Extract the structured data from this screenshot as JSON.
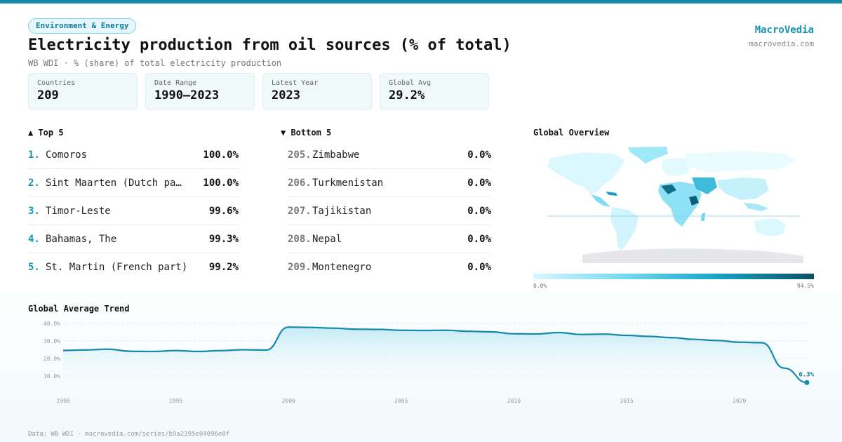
{
  "header": {
    "tag": "Environment & Energy",
    "title": "Electricity production from oil sources (% of total)",
    "subtitle": "WB WDI · % (share) of total electricity production",
    "brand": "MacroVedia",
    "brand_url": "macrovedia.com"
  },
  "stats": [
    {
      "label": "Countries",
      "value": "209"
    },
    {
      "label": "Date Range",
      "value": "1990–2023"
    },
    {
      "label": "Latest Year",
      "value": "2023"
    },
    {
      "label": "Global Avg",
      "value": "29.2%"
    }
  ],
  "top": {
    "title": "▲ Top 5",
    "items": [
      {
        "rank": "1.",
        "name": "Comoros",
        "value": "100.0%"
      },
      {
        "rank": "2.",
        "name": "Sint Maarten (Dutch pa…",
        "value": "100.0%"
      },
      {
        "rank": "3.",
        "name": "Timor-Leste",
        "value": "99.6%"
      },
      {
        "rank": "4.",
        "name": "Bahamas, The",
        "value": "99.3%"
      },
      {
        "rank": "5.",
        "name": "St. Martin (French part)",
        "value": "99.2%"
      }
    ]
  },
  "bottom": {
    "title": "▼ Bottom 5",
    "items": [
      {
        "rank": "205.",
        "name": "Zimbabwe",
        "value": "0.0%"
      },
      {
        "rank": "206.",
        "name": "Turkmenistan",
        "value": "0.0%"
      },
      {
        "rank": "207.",
        "name": "Tajikistan",
        "value": "0.0%"
      },
      {
        "rank": "208.",
        "name": "Nepal",
        "value": "0.0%"
      },
      {
        "rank": "209.",
        "name": "Montenegro",
        "value": "0.0%"
      }
    ]
  },
  "map": {
    "title": "Global Overview",
    "legend_min": "0.0%",
    "legend_max": "94.5%"
  },
  "chart_data": {
    "type": "area",
    "title": "Global Average Trend",
    "x": [
      1990,
      1991,
      1992,
      1993,
      1994,
      1995,
      1996,
      1997,
      1998,
      1999,
      2000,
      2001,
      2002,
      2003,
      2004,
      2005,
      2006,
      2007,
      2008,
      2009,
      2010,
      2011,
      2012,
      2013,
      2014,
      2015,
      2016,
      2017,
      2018,
      2019,
      2020,
      2021,
      2022,
      2023
    ],
    "values": [
      24.6,
      24.9,
      25.3,
      24.1,
      24.0,
      24.5,
      24.0,
      24.5,
      25.0,
      24.8,
      37.9,
      37.7,
      37.3,
      36.7,
      36.6,
      36.1,
      36.0,
      36.1,
      35.5,
      35.2,
      34.1,
      34.0,
      34.8,
      33.7,
      33.9,
      33.2,
      32.6,
      31.9,
      30.9,
      30.3,
      29.3,
      29.0,
      14.5,
      6.3
    ],
    "ylim": [
      0,
      42
    ],
    "yticks": [
      10,
      20,
      30,
      40
    ],
    "ytick_labels": [
      "10.0%",
      "20.0%",
      "30.0%",
      "40.0%"
    ],
    "xticks": [
      1990,
      1995,
      2000,
      2005,
      2010,
      2015,
      2020
    ],
    "end_label": "6.3%",
    "grid": true,
    "colors": {
      "line": "#1689b0",
      "fill_top": "#bfe9f5",
      "fill_bottom": "#ffffff"
    }
  },
  "footer": "Data: WB WDI · macrovedia.com/series/b9a2395e04096e8f"
}
